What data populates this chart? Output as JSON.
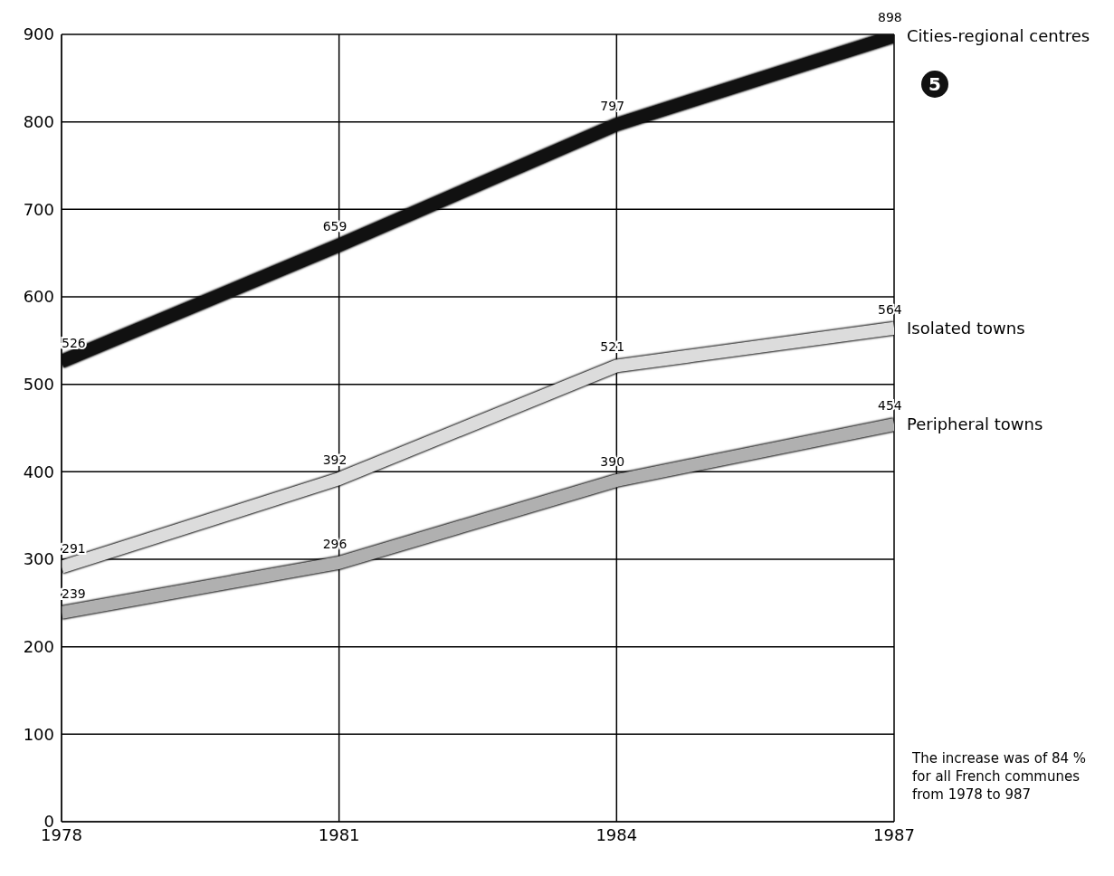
{
  "chart_data": {
    "type": "line",
    "x": [
      1978,
      1981,
      1984,
      1987
    ],
    "series": [
      {
        "name": "Cities-regional centres",
        "color": "#111111",
        "values": [
          526,
          659,
          797,
          898
        ]
      },
      {
        "name": "Isolated towns",
        "color": "#dcdcdc",
        "values": [
          291,
          392,
          521,
          564
        ]
      },
      {
        "name": "Peripheral towns",
        "color": "#b0b0b0",
        "values": [
          239,
          296,
          390,
          454
        ]
      }
    ],
    "xlim": [
      1978,
      1987
    ],
    "xticks": [
      1978,
      1981,
      1984,
      1987
    ],
    "ylim": [
      0,
      900
    ],
    "yticks": [
      0,
      100,
      200,
      300,
      400,
      500,
      600,
      700,
      800,
      900
    ],
    "grid": true,
    "legend": false,
    "marker": "none",
    "line_style": "solid",
    "data_labels": true,
    "annotations": [
      "5",
      "The increase was of 84 % for all French communes from 1978 to 987"
    ]
  }
}
